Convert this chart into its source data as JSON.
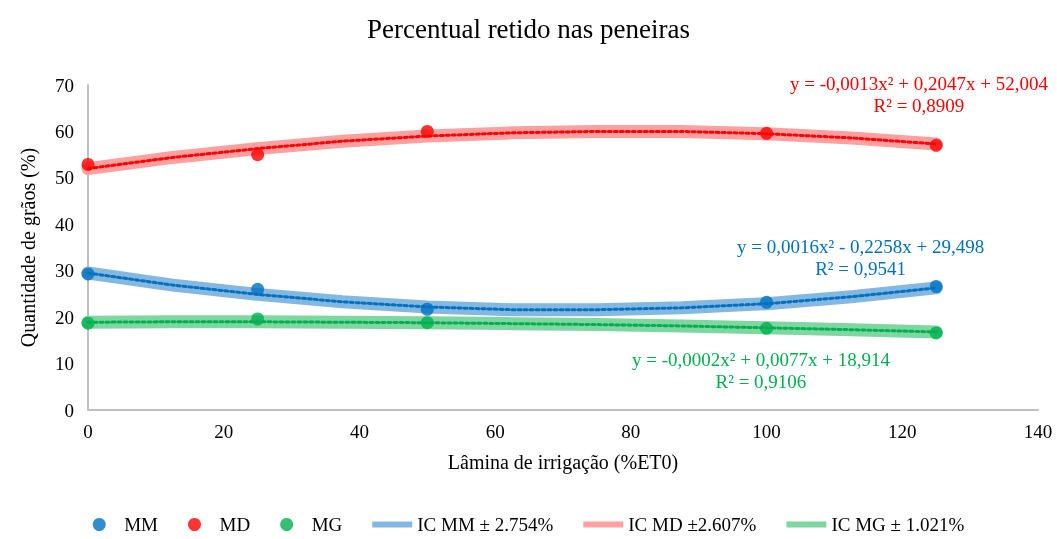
{
  "chart_data": {
    "type": "scatter",
    "title": "Percentual retido nas peneiras",
    "xlabel": "Lâmina de irrigação (%ET0)",
    "ylabel": "Quantidade de grãos (%)",
    "x": [
      0,
      25,
      50,
      100,
      125
    ],
    "xlim": [
      0,
      140
    ],
    "xticks": [
      0,
      20,
      40,
      60,
      80,
      100,
      120,
      140
    ],
    "ylim": [
      0,
      70
    ],
    "yticks": [
      0,
      10,
      20,
      30,
      40,
      50,
      60,
      70
    ],
    "grid": false,
    "legend": "bottom",
    "series": [
      {
        "name": "MM",
        "color": "#0070c0",
        "marker": "circle",
        "values": [
          29.3,
          26.0,
          21.7,
          23.2,
          26.6
        ]
      },
      {
        "name": "MD",
        "color": "#ff0000",
        "marker": "circle",
        "values": [
          52.9,
          55.0,
          60.0,
          59.6,
          57.0
        ]
      },
      {
        "name": "MG",
        "color": "#00b050",
        "marker": "circle",
        "values": [
          18.7,
          19.6,
          18.8,
          17.6,
          16.6
        ]
      },
      {
        "name": "IC MM ± 2.754%",
        "type": "line",
        "color": "#85b8e0",
        "marker": "none",
        "line_style": "solid",
        "x": [
          0,
          12.5,
          25,
          37.5,
          50,
          62.5,
          75,
          87.5,
          100,
          112.5,
          125
        ],
        "values": [
          29.5,
          26.9,
          24.9,
          23.3,
          22.2,
          21.6,
          21.6,
          22.0,
          22.9,
          24.4,
          26.3
        ]
      },
      {
        "name": "IC MD ±2.607%",
        "type": "line",
        "color": "#ffa0a0",
        "marker": "none",
        "line_style": "solid",
        "x": [
          0,
          12.5,
          25,
          37.5,
          50,
          62.5,
          75,
          87.5,
          100,
          112.5,
          125
        ],
        "values": [
          52.0,
          54.4,
          56.3,
          57.9,
          59.0,
          59.7,
          60.0,
          60.0,
          59.5,
          58.6,
          57.3
        ]
      },
      {
        "name": "IC MG ± 1.021%",
        "type": "line",
        "color": "#7fd6a0",
        "marker": "none",
        "line_style": "solid",
        "x": [
          0,
          12.5,
          25,
          37.5,
          50,
          62.5,
          75,
          87.5,
          100,
          112.5,
          125
        ],
        "values": [
          18.9,
          19.0,
          19.0,
          18.9,
          18.8,
          18.6,
          18.4,
          18.1,
          17.7,
          17.3,
          16.8
        ]
      },
      {
        "type": "line",
        "color": "#ff0000",
        "marker": "none",
        "line_style": "dotted",
        "x": [
          0,
          12.5,
          25,
          37.5,
          50,
          62.5,
          75,
          87.5,
          100,
          112.5,
          125
        ],
        "values": [
          52.0,
          54.4,
          56.3,
          57.9,
          59.0,
          59.7,
          60.0,
          60.0,
          59.5,
          58.6,
          57.3
        ]
      },
      {
        "type": "line",
        "color": "#0070c0",
        "marker": "none",
        "line_style": "dotted",
        "x": [
          0,
          12.5,
          25,
          37.5,
          50,
          62.5,
          75,
          87.5,
          100,
          112.5,
          125
        ],
        "values": [
          29.5,
          26.9,
          24.9,
          23.3,
          22.2,
          21.6,
          21.6,
          22.0,
          22.9,
          24.4,
          26.3
        ]
      },
      {
        "type": "line",
        "color": "#00b050",
        "marker": "none",
        "line_style": "dotted",
        "x": [
          0,
          12.5,
          25,
          37.5,
          50,
          62.5,
          75,
          87.5,
          100,
          112.5,
          125
        ],
        "values": [
          18.9,
          19.0,
          19.0,
          18.9,
          18.8,
          18.6,
          18.4,
          18.1,
          17.7,
          17.3,
          16.8
        ]
      }
    ],
    "annotations": [
      "y = -0,0013x² + 0,2047x + 52,004\nR² = 0,8909",
      "y = 0,0016x² - 0,2258x + 29,498\nR² = 0,9541",
      "y = -0,0002x² + 0,0077x + 18,914\nR² = 0,9106"
    ]
  }
}
